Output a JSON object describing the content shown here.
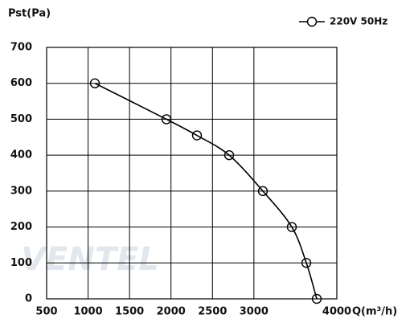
{
  "chart_data": {
    "type": "line",
    "y_label": "Pst(Pa)",
    "x_label": "Q(m³/h)",
    "watermark": "VENTEL",
    "x": [
      1082,
      1945,
      2313,
      2701,
      3108,
      3457,
      3632,
      3758
    ],
    "series": [
      {
        "name": "220V 50Hz",
        "color": "#000000",
        "values": [
          600,
          500,
          455,
          400,
          300,
          200,
          100,
          0
        ]
      }
    ],
    "xlim": [
      500,
      4000
    ],
    "xticks": [
      500,
      1000,
      1500,
      2000,
      2500,
      3000,
      4000
    ],
    "ylim": [
      0,
      700
    ],
    "yticks": [
      0,
      100,
      200,
      300,
      400,
      500,
      600,
      700
    ],
    "grid": true,
    "legend": "top-right"
  }
}
